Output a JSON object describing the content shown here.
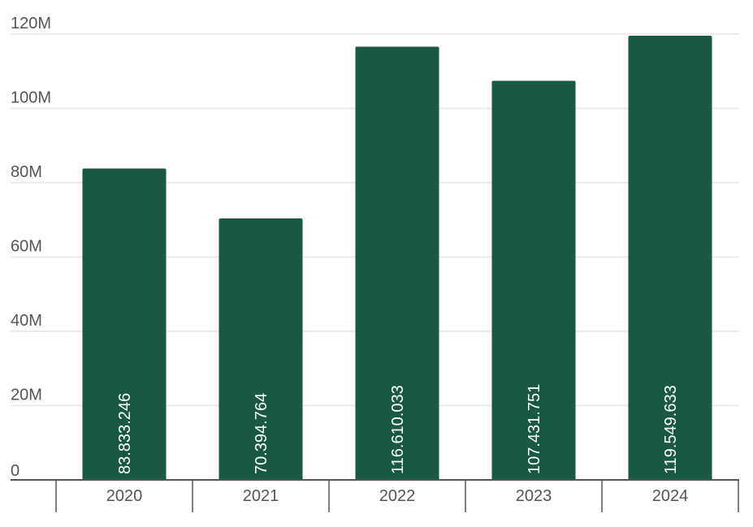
{
  "chart_data": {
    "type": "bar",
    "categories": [
      "2020",
      "2021",
      "2022",
      "2023",
      "2024"
    ],
    "values": [
      83833246,
      70394764,
      116610033,
      107431751,
      119549633
    ],
    "data_labels": [
      "83.833.246",
      "70.394.764",
      "116.610.033",
      "107.431.751",
      "119.549.633"
    ],
    "y_tick_values": [
      0,
      20000000,
      40000000,
      60000000,
      80000000,
      100000000,
      120000000
    ],
    "y_tick_labels": [
      "0",
      "20M",
      "40M",
      "60M",
      "80M",
      "100M",
      "120M"
    ],
    "ylim": [
      0,
      120000000
    ],
    "grid": true,
    "legend": false,
    "title": "",
    "xlabel": "",
    "ylabel": ""
  },
  "colors": {
    "bar": "#185845",
    "grid": "#e6e6e6",
    "axis": "#555555",
    "text": "#555555",
    "data_label": "#ffffff"
  }
}
